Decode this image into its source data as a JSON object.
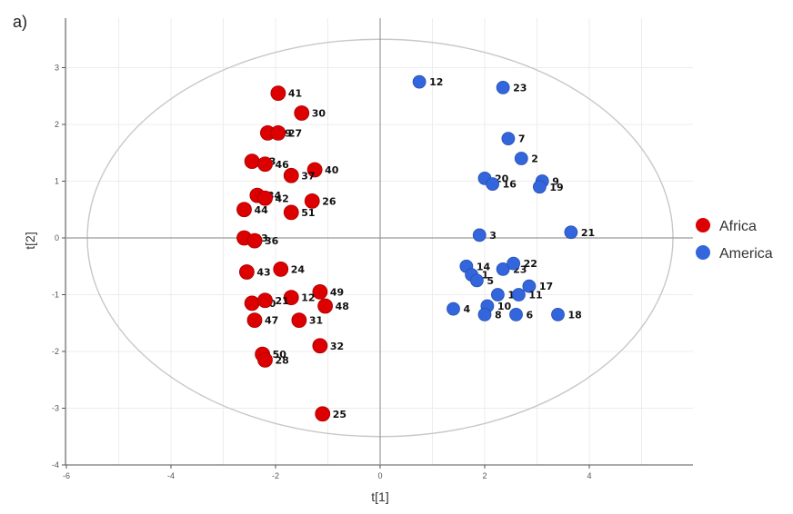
{
  "chart_data": {
    "type": "scatter",
    "panel_label": "a)",
    "xlabel": "t[1]",
    "ylabel": "t[2]",
    "xlim": [
      -6,
      6
    ],
    "ylim": [
      -4,
      4
    ],
    "xticks": [
      "-6",
      "-4",
      "-2",
      "0",
      "2",
      "4"
    ],
    "yticks": [
      "3",
      "2",
      "1",
      "0",
      "-1",
      "-2",
      "-3",
      "-4"
    ],
    "grid": true,
    "ellipse": {
      "cx": 0,
      "cy": 0,
      "rx": 5.6,
      "ry": 3.5
    },
    "legend": {
      "position": "right",
      "entries": [
        "Africa",
        "America"
      ]
    },
    "series": [
      {
        "name": "Africa",
        "color": "#dd0000",
        "points": [
          {
            "label": "41",
            "x": -1.95,
            "y": 2.55
          },
          {
            "label": "30",
            "x": -1.5,
            "y": 2.2
          },
          {
            "label": "39",
            "x": -2.15,
            "y": 1.85
          },
          {
            "label": "27",
            "x": -1.95,
            "y": 1.85
          },
          {
            "label": "33",
            "x": -2.45,
            "y": 1.35
          },
          {
            "label": "46",
            "x": -2.2,
            "y": 1.3
          },
          {
            "label": "40",
            "x": -1.25,
            "y": 1.2
          },
          {
            "label": "37",
            "x": -1.7,
            "y": 1.1
          },
          {
            "label": "34",
            "x": -2.35,
            "y": 0.75
          },
          {
            "label": "42",
            "x": -2.2,
            "y": 0.7
          },
          {
            "label": "26",
            "x": -1.3,
            "y": 0.65
          },
          {
            "label": "44",
            "x": -2.6,
            "y": 0.5
          },
          {
            "label": "51",
            "x": -1.7,
            "y": 0.45
          },
          {
            "label": "43",
            "x": -2.6,
            "y": 0.0
          },
          {
            "label": "36",
            "x": -2.4,
            "y": -0.05
          },
          {
            "label": "43",
            "x": -2.55,
            "y": -0.6
          },
          {
            "label": "24",
            "x": -1.9,
            "y": -0.55
          },
          {
            "label": "49",
            "x": -1.15,
            "y": -0.95
          },
          {
            "label": "12",
            "x": -1.7,
            "y": -1.05
          },
          {
            "label": "20",
            "x": -2.45,
            "y": -1.15
          },
          {
            "label": "21",
            "x": -2.2,
            "y": -1.1
          },
          {
            "label": "48",
            "x": -1.05,
            "y": -1.2
          },
          {
            "label": "47",
            "x": -2.4,
            "y": -1.45
          },
          {
            "label": "31",
            "x": -1.55,
            "y": -1.45
          },
          {
            "label": "32",
            "x": -1.15,
            "y": -1.9
          },
          {
            "label": "50",
            "x": -2.25,
            "y": -2.05
          },
          {
            "label": "28",
            "x": -2.2,
            "y": -2.15
          },
          {
            "label": "25",
            "x": -1.1,
            "y": -3.1
          }
        ]
      },
      {
        "name": "America",
        "color": "#3366dd",
        "points": [
          {
            "label": "12",
            "x": 0.75,
            "y": 2.75
          },
          {
            "label": "23",
            "x": 2.35,
            "y": 2.65
          },
          {
            "label": "7",
            "x": 2.45,
            "y": 1.75
          },
          {
            "label": "2",
            "x": 2.7,
            "y": 1.4
          },
          {
            "label": "20",
            "x": 2.0,
            "y": 1.05
          },
          {
            "label": "16",
            "x": 2.15,
            "y": 0.95
          },
          {
            "label": "9",
            "x": 3.1,
            "y": 1.0
          },
          {
            "label": "19",
            "x": 3.05,
            "y": 0.9
          },
          {
            "label": "3",
            "x": 1.9,
            "y": 0.05
          },
          {
            "label": "21",
            "x": 3.65,
            "y": 0.1
          },
          {
            "label": "14",
            "x": 1.65,
            "y": -0.5
          },
          {
            "label": "23",
            "x": 2.35,
            "y": -0.55
          },
          {
            "label": "22",
            "x": 2.55,
            "y": -0.45
          },
          {
            "label": "1",
            "x": 1.75,
            "y": -0.65
          },
          {
            "label": "5",
            "x": 1.85,
            "y": -0.75
          },
          {
            "label": "17",
            "x": 2.85,
            "y": -0.85
          },
          {
            "label": "15",
            "x": 2.25,
            "y": -1.0
          },
          {
            "label": "11",
            "x": 2.65,
            "y": -1.0
          },
          {
            "label": "4",
            "x": 1.4,
            "y": -1.25
          },
          {
            "label": "10",
            "x": 2.05,
            "y": -1.2
          },
          {
            "label": "8",
            "x": 2.0,
            "y": -1.35
          },
          {
            "label": "6",
            "x": 2.6,
            "y": -1.35
          },
          {
            "label": "18",
            "x": 3.4,
            "y": -1.35
          }
        ]
      }
    ]
  }
}
